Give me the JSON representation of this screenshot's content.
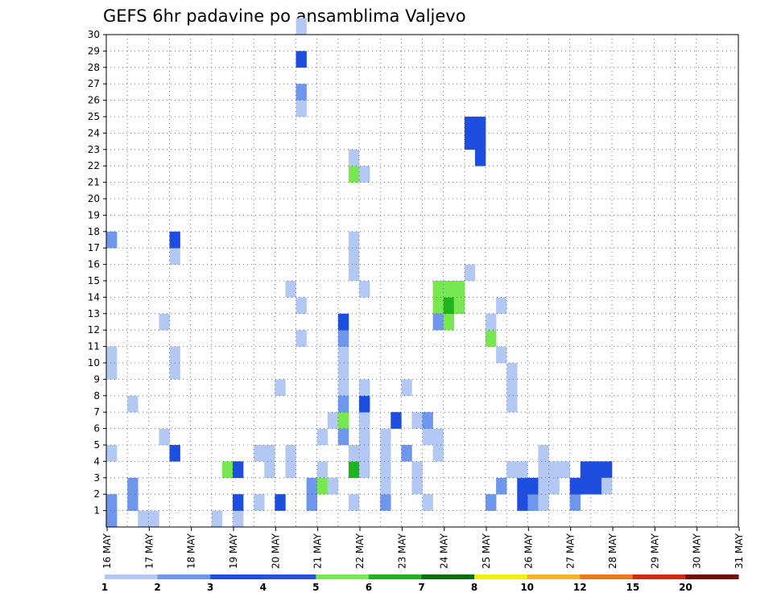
{
  "chart_data": {
    "type": "heatmap",
    "title": "GEFS 6hr padavine po ansamblima Valjevo",
    "xlabel": "",
    "ylabel": "",
    "x_tick_labels": [
      "16 MAY",
      "17 MAY",
      "18 MAY",
      "19 MAY",
      "20 MAY",
      "21 MAY",
      "22 MAY",
      "23 MAY",
      "24 MAY",
      "25 MAY",
      "26 MAY",
      "27 MAY",
      "28 MAY",
      "29 MAY",
      "30 MAY",
      "31 MAY"
    ],
    "y_tick_labels": [
      "1",
      "2",
      "3",
      "4",
      "5",
      "6",
      "7",
      "8",
      "9",
      "10",
      "11",
      "12",
      "13",
      "14",
      "15",
      "16",
      "17",
      "18",
      "19",
      "20",
      "21",
      "22",
      "23",
      "24",
      "25",
      "26",
      "27",
      "28",
      "29",
      "30"
    ],
    "xlim": [
      0,
      60
    ],
    "ylim": [
      0,
      30
    ],
    "grid": true,
    "colorbar": {
      "position": "bottom",
      "labels": [
        "1",
        "2",
        "3",
        "4",
        "5",
        "6",
        "7",
        "8",
        "10",
        "12",
        "15",
        "20"
      ],
      "colors": [
        "#b4c8f4",
        "#6e96ec",
        "#1e4ee0",
        "#2850d8",
        "#78e850",
        "#1eb41e",
        "#0a6e0a",
        "#f0f000",
        "#f8b428",
        "#f07818",
        "#d22814",
        "#780a0a"
      ]
    },
    "level_colors": {
      "1": "#b4c8f4",
      "2": "#6e96ec",
      "3": "#1e4ee0",
      "4": "#78e850",
      "5": "#1eb41e",
      "6": "#0a6e0a",
      "7": "#f0f000",
      "8": "#f8b428",
      "9": "#f07818",
      "10": "#d22814",
      "11": "#780a0a"
    },
    "cells_note_levels": "each cell is [time_step_index(0-59, 6h steps from 16 MAY 00Z), ensemble_member(1-30), level]",
    "cells": [
      [
        2,
        1,
        2
      ],
      [
        2,
        2,
        2
      ],
      [
        3,
        0,
        1
      ],
      [
        5,
        5,
        1
      ],
      [
        4,
        0,
        1
      ],
      [
        5,
        12,
        1
      ],
      [
        6,
        16,
        1
      ],
      [
        6,
        4,
        3
      ],
      [
        6,
        17,
        3
      ],
      [
        6,
        9,
        1
      ],
      [
        6,
        10,
        1
      ],
      [
        2,
        7,
        1
      ],
      [
        10,
        0,
        1
      ],
      [
        11,
        3,
        4
      ],
      [
        12,
        0,
        1
      ],
      [
        12,
        1,
        3
      ],
      [
        12,
        3,
        3
      ],
      [
        14,
        1,
        1
      ],
      [
        14,
        4,
        1
      ],
      [
        15,
        4,
        1
      ],
      [
        15,
        3,
        1
      ],
      [
        16,
        1,
        3
      ],
      [
        16,
        8,
        1
      ],
      [
        17,
        14,
        1
      ],
      [
        17,
        3,
        1
      ],
      [
        17,
        4,
        1
      ],
      [
        18,
        28,
        3
      ],
      [
        18,
        26,
        2
      ],
      [
        18,
        25,
        1
      ],
      [
        18,
        30,
        1
      ],
      [
        18,
        13,
        1
      ],
      [
        18,
        11,
        1
      ],
      [
        19,
        1,
        2
      ],
      [
        19,
        2,
        2
      ],
      [
        20,
        2,
        4
      ],
      [
        20,
        5,
        1
      ],
      [
        20,
        3,
        1
      ],
      [
        21,
        2,
        1
      ],
      [
        21,
        6,
        1
      ],
      [
        22,
        6,
        4
      ],
      [
        22,
        5,
        2
      ],
      [
        23,
        1,
        1
      ],
      [
        23,
        3,
        5
      ],
      [
        23,
        4,
        1
      ],
      [
        24,
        3,
        1
      ],
      [
        24,
        4,
        1
      ],
      [
        24,
        5,
        1
      ],
      [
        24,
        6,
        1
      ],
      [
        22,
        8,
        1
      ],
      [
        22,
        7,
        2
      ],
      [
        22,
        9,
        1
      ],
      [
        22,
        10,
        1
      ],
      [
        22,
        11,
        2
      ],
      [
        22,
        12,
        3
      ],
      [
        23,
        15,
        1
      ],
      [
        23,
        16,
        1
      ],
      [
        23,
        17,
        1
      ],
      [
        23,
        21,
        4
      ],
      [
        23,
        22,
        1
      ],
      [
        24,
        7,
        3
      ],
      [
        24,
        8,
        1
      ],
      [
        24,
        21,
        1
      ],
      [
        24,
        14,
        1
      ],
      [
        26,
        1,
        2
      ],
      [
        26,
        2,
        1
      ],
      [
        26,
        3,
        1
      ],
      [
        26,
        4,
        1
      ],
      [
        26,
        5,
        1
      ],
      [
        27,
        6,
        3
      ],
      [
        28,
        8,
        1
      ],
      [
        28,
        4,
        2
      ],
      [
        29,
        2,
        1
      ],
      [
        29,
        3,
        1
      ],
      [
        29,
        6,
        1
      ],
      [
        30,
        1,
        1
      ],
      [
        30,
        5,
        1
      ],
      [
        30,
        6,
        2
      ],
      [
        31,
        4,
        1
      ],
      [
        31,
        5,
        1
      ],
      [
        31,
        13,
        4
      ],
      [
        31,
        14,
        4
      ],
      [
        31,
        12,
        2
      ],
      [
        32,
        12,
        4
      ],
      [
        32,
        13,
        5
      ],
      [
        32,
        14,
        4
      ],
      [
        33,
        14,
        4
      ],
      [
        33,
        13,
        4
      ],
      [
        34,
        15,
        1
      ],
      [
        34,
        23,
        3
      ],
      [
        34,
        24,
        3
      ],
      [
        35,
        22,
        3
      ],
      [
        35,
        23,
        3
      ],
      [
        35,
        24,
        3
      ],
      [
        36,
        11,
        4
      ],
      [
        36,
        12,
        1
      ],
      [
        37,
        13,
        1
      ],
      [
        37,
        10,
        1
      ],
      [
        38,
        9,
        1
      ],
      [
        38,
        8,
        1
      ],
      [
        38,
        7,
        1
      ],
      [
        36,
        1,
        2
      ],
      [
        37,
        2,
        2
      ],
      [
        38,
        3,
        1
      ],
      [
        39,
        1,
        3
      ],
      [
        39,
        2,
        3
      ],
      [
        39,
        3,
        1
      ],
      [
        40,
        1,
        2
      ],
      [
        40,
        2,
        3
      ],
      [
        41,
        1,
        1
      ],
      [
        41,
        2,
        1
      ],
      [
        41,
        3,
        1
      ],
      [
        41,
        4,
        1
      ],
      [
        42,
        2,
        1
      ],
      [
        42,
        3,
        1
      ],
      [
        43,
        3,
        1
      ],
      [
        44,
        1,
        2
      ],
      [
        44,
        2,
        3
      ],
      [
        45,
        2,
        3
      ],
      [
        45,
        3,
        3
      ],
      [
        46,
        2,
        3
      ],
      [
        46,
        3,
        3
      ],
      [
        47,
        3,
        3
      ],
      [
        47,
        2,
        1
      ],
      [
        0,
        17,
        2
      ],
      [
        0,
        9,
        1
      ],
      [
        0,
        4,
        1
      ],
      [
        0,
        1,
        2
      ],
      [
        0,
        0,
        2
      ],
      [
        0,
        10,
        1
      ]
    ]
  },
  "colorbar_ticks": [
    "1",
    "2",
    "3",
    "4",
    "5",
    "6",
    "7",
    "8",
    "10",
    "12",
    "15",
    "20"
  ]
}
